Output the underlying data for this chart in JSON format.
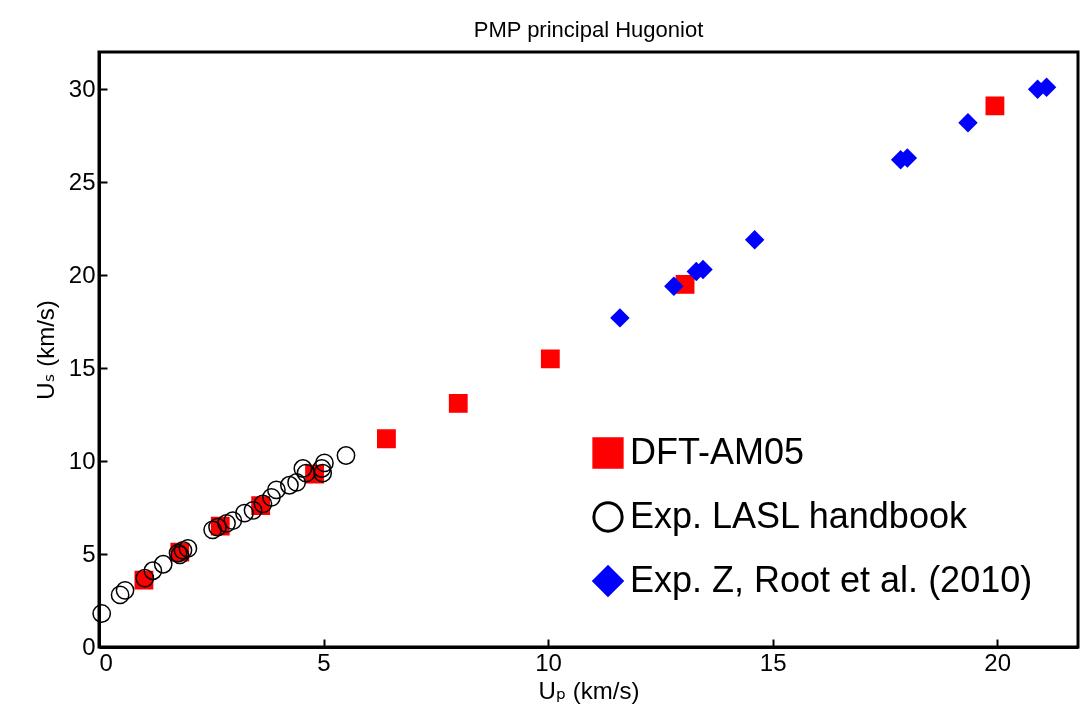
{
  "chart_data": {
    "type": "scatter",
    "title": "PMP principal Hugoniot",
    "xlabel": "Uₚ (km/s)",
    "ylabel": "Uₛ (km/s)",
    "xlim": [
      0,
      21.8
    ],
    "ylim": [
      0,
      32
    ],
    "xticks": [
      0,
      5,
      10,
      15,
      20
    ],
    "yticks": [
      0,
      5,
      10,
      15,
      20,
      25,
      30
    ],
    "grid": false,
    "legend": "bottom right",
    "series": [
      {
        "name": "DFT-AM05",
        "color": "#ff0000",
        "marker": "square",
        "x": [
          1.0,
          1.8,
          2.7,
          3.6,
          4.8,
          6.4,
          8.0,
          10.05,
          13.05,
          19.95
        ],
        "values": [
          3.6,
          5.1,
          6.5,
          7.6,
          9.3,
          11.2,
          13.1,
          15.5,
          19.5,
          29.1
        ]
      },
      {
        "name": "Exp. LASL handbook",
        "color": "#000000",
        "marker": "circle",
        "x": [
          0.06,
          0.47,
          0.58,
          1.02,
          1.2,
          1.43,
          1.76,
          1.8,
          1.87,
          1.98,
          2.53,
          2.64,
          2.84,
          2.98,
          3.24,
          3.43,
          3.65,
          3.84,
          3.95,
          4.24,
          4.4,
          4.54,
          4.61,
          4.96,
          4.98,
          5.02,
          5.5
        ],
        "values": [
          1.8,
          2.8,
          3.05,
          3.7,
          4.1,
          4.45,
          5.05,
          4.95,
          5.2,
          5.3,
          6.3,
          6.45,
          6.65,
          6.8,
          7.2,
          7.35,
          7.7,
          8.05,
          8.45,
          8.7,
          8.85,
          9.6,
          9.35,
          9.6,
          9.35,
          9.9,
          10.3
        ]
      },
      {
        "name": "Exp. Z, Root et al. (2010)",
        "color": "#0000ff",
        "marker": "diamond",
        "x": [
          11.6,
          12.8,
          13.3,
          13.45,
          14.6,
          17.85,
          18.0,
          19.35,
          20.9,
          21.1
        ],
        "values": [
          17.7,
          19.4,
          20.2,
          20.3,
          21.9,
          26.2,
          26.3,
          28.2,
          30.0,
          30.1
        ]
      }
    ]
  }
}
